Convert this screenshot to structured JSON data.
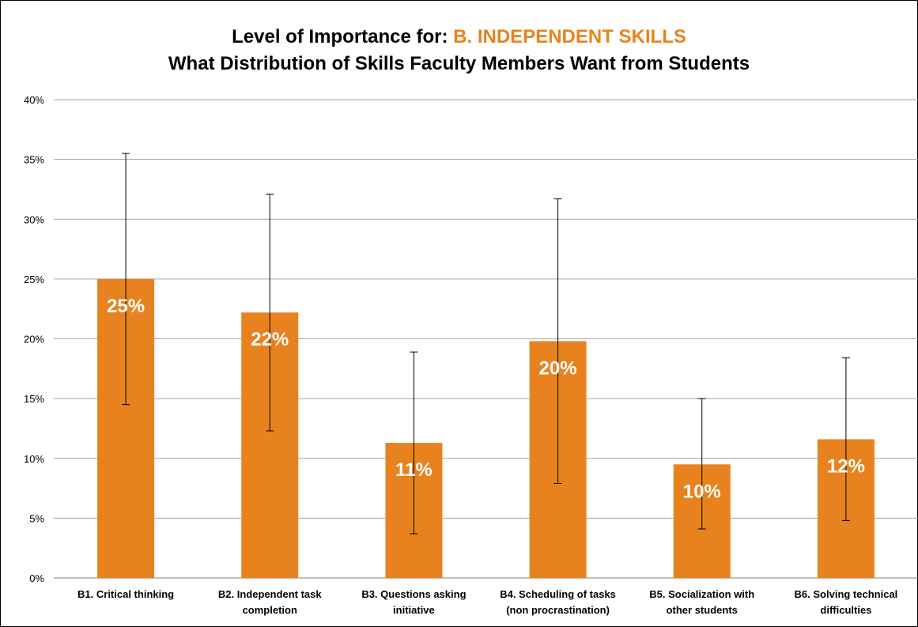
{
  "chart_data": {
    "type": "bar",
    "title_prefix": "Level of Importance for: ",
    "title_highlight": "B. INDEPENDENT SKILLS",
    "subtitle": "What Distribution of Skills Faculty Members Want from Students",
    "xlabel": "",
    "ylabel": "",
    "ylim": [
      0,
      40
    ],
    "yticks": [
      0,
      5,
      10,
      15,
      20,
      25,
      30,
      35,
      40
    ],
    "ytick_labels": [
      "0%",
      "5%",
      "10%",
      "15%",
      "20%",
      "25%",
      "30%",
      "35%",
      "40%"
    ],
    "grid": true,
    "legend": "none",
    "categories": [
      [
        "B1. Critical thinking"
      ],
      [
        "B2. Independent task",
        "completion"
      ],
      [
        "B3. Questions asking",
        "initiative"
      ],
      [
        "B4. Scheduling of tasks",
        "(non procrastination)"
      ],
      [
        "B5. Socialization with",
        "other students"
      ],
      [
        "B6. Solving technical",
        "difficulties"
      ]
    ],
    "values": [
      25.0,
      22.2,
      11.3,
      19.8,
      9.5,
      11.6
    ],
    "data_labels": [
      "25%",
      "22%",
      "11%",
      "20%",
      "10%",
      "12%"
    ],
    "error_low": [
      14.5,
      12.3,
      3.7,
      7.9,
      4.1,
      4.8
    ],
    "error_high": [
      35.5,
      32.1,
      18.9,
      31.7,
      15.0,
      18.4
    ],
    "colors": {
      "bar": "#e8821e",
      "highlight": "#e8821e",
      "grid": "#a6a6a6",
      "error": "#000000",
      "data_label": "#ffffff"
    }
  }
}
